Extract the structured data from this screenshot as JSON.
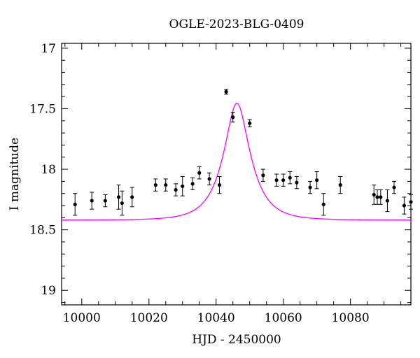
{
  "chart_data": {
    "type": "scatter",
    "title": "OGLE-2023-BLG-0409",
    "xlabel": "HJD - 2450000",
    "ylabel": "I magnitude",
    "xlim": [
      9994,
      10098
    ],
    "ylim": [
      19.12,
      16.96
    ],
    "y_inverted": true,
    "grid": false,
    "x_ticks": [
      {
        "value": 10000,
        "label": "10000"
      },
      {
        "value": 10020,
        "label": "10020"
      },
      {
        "value": 10040,
        "label": "10040"
      },
      {
        "value": 10060,
        "label": "10060"
      },
      {
        "value": 10080,
        "label": "10080"
      }
    ],
    "y_ticks": [
      {
        "value": 17,
        "label": "17"
      },
      {
        "value": 17.5,
        "label": "17.5"
      },
      {
        "value": 18,
        "label": "18"
      },
      {
        "value": 18.5,
        "label": "18.5"
      },
      {
        "value": 19,
        "label": "19"
      }
    ],
    "points": [
      {
        "x": 9998.0,
        "y": 18.29,
        "err": 0.09
      },
      {
        "x": 10003.0,
        "y": 18.26,
        "err": 0.07
      },
      {
        "x": 10007.0,
        "y": 18.26,
        "err": 0.05
      },
      {
        "x": 10011.0,
        "y": 18.23,
        "err": 0.1
      },
      {
        "x": 10012.0,
        "y": 18.28,
        "err": 0.1
      },
      {
        "x": 10015.0,
        "y": 18.23,
        "err": 0.08
      },
      {
        "x": 10022.0,
        "y": 18.13,
        "err": 0.05
      },
      {
        "x": 10025.0,
        "y": 18.13,
        "err": 0.05
      },
      {
        "x": 10028.0,
        "y": 18.17,
        "err": 0.05
      },
      {
        "x": 10030.0,
        "y": 18.14,
        "err": 0.08
      },
      {
        "x": 10033.0,
        "y": 18.12,
        "err": 0.05
      },
      {
        "x": 10035.0,
        "y": 18.03,
        "err": 0.05
      },
      {
        "x": 10038.0,
        "y": 18.08,
        "err": 0.05
      },
      {
        "x": 10041.0,
        "y": 18.13,
        "err": 0.07
      },
      {
        "x": 10043.0,
        "y": 17.36,
        "err": 0.02
      },
      {
        "x": 10045.0,
        "y": 17.57,
        "err": 0.04
      },
      {
        "x": 10050.0,
        "y": 17.62,
        "err": 0.03
      },
      {
        "x": 10054.0,
        "y": 18.05,
        "err": 0.05
      },
      {
        "x": 10058.0,
        "y": 18.09,
        "err": 0.05
      },
      {
        "x": 10060.0,
        "y": 18.09,
        "err": 0.05
      },
      {
        "x": 10062.0,
        "y": 18.07,
        "err": 0.05
      },
      {
        "x": 10064.0,
        "y": 18.11,
        "err": 0.05
      },
      {
        "x": 10068.0,
        "y": 18.15,
        "err": 0.05
      },
      {
        "x": 10070.0,
        "y": 18.09,
        "err": 0.07
      },
      {
        "x": 10072.0,
        "y": 18.29,
        "err": 0.09
      },
      {
        "x": 10077.0,
        "y": 18.13,
        "err": 0.07
      },
      {
        "x": 10087.0,
        "y": 18.21,
        "err": 0.08
      },
      {
        "x": 10088.0,
        "y": 18.23,
        "err": 0.06
      },
      {
        "x": 10089.0,
        "y": 18.23,
        "err": 0.06
      },
      {
        "x": 10091.0,
        "y": 18.26,
        "err": 0.09
      },
      {
        "x": 10093.0,
        "y": 18.15,
        "err": 0.05
      },
      {
        "x": 10096.0,
        "y": 18.3,
        "err": 0.07
      },
      {
        "x": 10098.0,
        "y": 18.27,
        "err": 0.06
      }
    ],
    "model": {
      "name": "",
      "color": "#ff00ff",
      "t0": 10046.2,
      "tE": 7.2,
      "u0": 0.44,
      "baseline_mag": 18.42
    },
    "colors": {
      "points": "#000000",
      "model": "#ff00ff",
      "frame": "#000000"
    }
  }
}
